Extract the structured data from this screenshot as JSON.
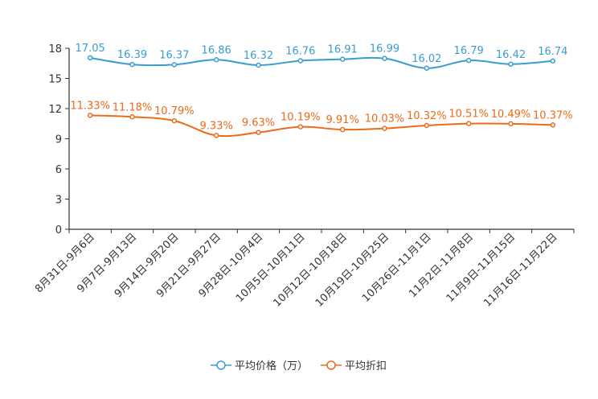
{
  "chart_data": {
    "type": "line",
    "title": "",
    "xlabel": "",
    "ylabel": "",
    "ylim": [
      0,
      18
    ],
    "yticks": [
      0,
      3,
      6,
      9,
      12,
      15,
      18
    ],
    "categories": [
      "8月31日-9月6日",
      "9月7日-9月13日",
      "9月14日-9月20日",
      "9月21日-9月27日",
      "9月28日-10月4日",
      "10月5日-10月11日",
      "10月12日-10月18日",
      "10月19日-10月25日",
      "10月26日-11月1日",
      "11月2日-11月8日",
      "11月9日-11月15日",
      "11月16日-11月22日"
    ],
    "series": [
      {
        "name": "平均价格（万）",
        "color": "#3a9dd0",
        "values": [
          17.05,
          16.39,
          16.37,
          16.86,
          16.32,
          16.76,
          16.91,
          16.99,
          16.02,
          16.79,
          16.42,
          16.74
        ],
        "labels": [
          "17.05",
          "16.39",
          "16.37",
          "16.86",
          "16.32",
          "16.76",
          "16.91",
          "16.99",
          "16.02",
          "16.79",
          "16.42",
          "16.74"
        ]
      },
      {
        "name": "平均折扣",
        "color": "#ee6a16",
        "values": [
          11.33,
          11.18,
          10.79,
          9.33,
          9.63,
          10.19,
          9.91,
          10.03,
          10.32,
          10.51,
          10.49,
          10.37
        ],
        "labels": [
          "11.33%",
          "11.18%",
          "10.79%",
          "9.33%",
          "9.63%",
          "10.19%",
          "9.91%",
          "10.03%",
          "10.32%",
          "10.51%",
          "10.49%",
          "10.37%"
        ]
      }
    ],
    "legend_position": "bottom-center",
    "grid": false
  }
}
